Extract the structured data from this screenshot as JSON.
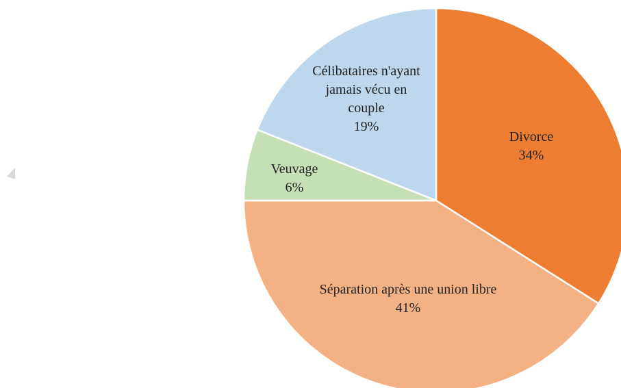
{
  "chart_data": {
    "type": "pie",
    "categories": [
      "Divorce",
      "Séparation après une union libre",
      "Veuvage",
      "Célibataires n'ayant jamais vécu en couple"
    ],
    "values": [
      34,
      41,
      6,
      19
    ],
    "value_labels": [
      "34%",
      "41%",
      "6%",
      "19%"
    ],
    "colors": [
      "#ED7D31",
      "#F4B183",
      "#C5E0B4",
      "#BDD7EE"
    ]
  }
}
